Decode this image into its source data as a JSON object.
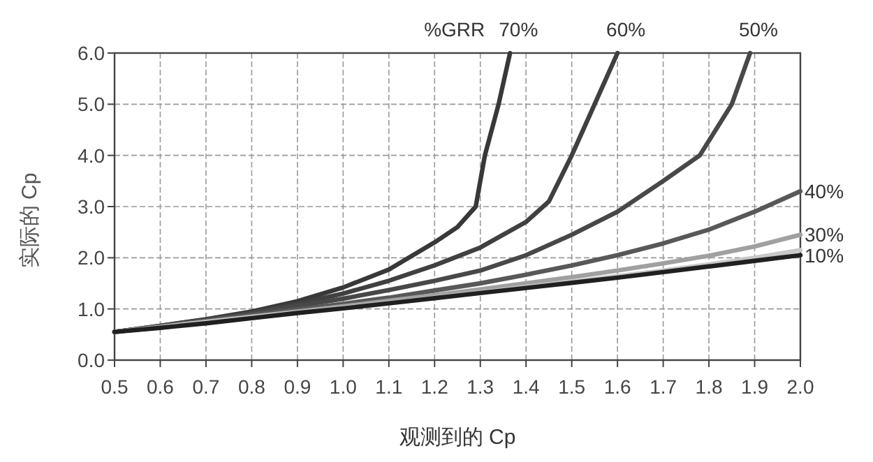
{
  "chart_data": {
    "type": "line",
    "xlabel": "观测到的 Cp",
    "ylabel": "实际的 Cp",
    "legend_title": "%GRR",
    "xlim": [
      0.5,
      2.0
    ],
    "xticks": [
      {
        "value": 0.5,
        "label": "0.5"
      },
      {
        "value": 0.6,
        "label": "0.6"
      },
      {
        "value": 0.7,
        "label": "0.7"
      },
      {
        "value": 0.8,
        "label": "0.8"
      },
      {
        "value": 0.9,
        "label": "0.9"
      },
      {
        "value": 1.0,
        "label": "1.0"
      },
      {
        "value": 1.1,
        "label": "1.1"
      },
      {
        "value": 1.2,
        "label": "1.2"
      },
      {
        "value": 1.3,
        "label": "1.3"
      },
      {
        "value": 1.4,
        "label": "1.4"
      },
      {
        "value": 1.5,
        "label": "1.5"
      },
      {
        "value": 1.6,
        "label": "1.6"
      },
      {
        "value": 1.7,
        "label": "1.7"
      },
      {
        "value": 1.8,
        "label": "1.8"
      },
      {
        "value": 1.9,
        "label": "1.9"
      },
      {
        "value": 2.0,
        "label": "2.0"
      }
    ],
    "ylim": [
      0,
      6
    ],
    "yticks": [
      {
        "value": 0,
        "label": "0.0"
      },
      {
        "value": 1,
        "label": "1.0"
      },
      {
        "value": 2,
        "label": "2.0"
      },
      {
        "value": 3,
        "label": "3.0"
      },
      {
        "value": 4,
        "label": "4.0"
      },
      {
        "value": 5,
        "label": "5.0"
      },
      {
        "value": 6,
        "label": "6.0"
      }
    ],
    "grid": true,
    "line_style": "solid",
    "series": [
      {
        "name": "70%",
        "color": "#383838",
        "x": [
          0.5,
          0.6,
          0.7,
          0.8,
          0.9,
          1.0,
          1.1,
          1.2,
          1.25,
          1.29,
          1.31,
          1.34,
          1.365
        ],
        "values": [
          0.55,
          0.67,
          0.8,
          0.95,
          1.15,
          1.42,
          1.77,
          2.3,
          2.6,
          3.0,
          4.0,
          5.0,
          6.0
        ]
      },
      {
        "name": "60%",
        "color": "#404040",
        "x": [
          0.5,
          0.6,
          0.7,
          0.8,
          0.9,
          1.0,
          1.1,
          1.2,
          1.3,
          1.4,
          1.45,
          1.5,
          1.55,
          1.6
        ],
        "values": [
          0.55,
          0.67,
          0.79,
          0.93,
          1.1,
          1.3,
          1.55,
          1.85,
          2.2,
          2.7,
          3.1,
          4.0,
          5.0,
          6.0
        ]
      },
      {
        "name": "50%",
        "color": "#484848",
        "x": [
          0.5,
          0.6,
          0.7,
          0.8,
          0.9,
          1.0,
          1.1,
          1.2,
          1.3,
          1.4,
          1.5,
          1.6,
          1.7,
          1.78,
          1.85,
          1.89
        ],
        "values": [
          0.55,
          0.66,
          0.78,
          0.91,
          1.06,
          1.2,
          1.37,
          1.55,
          1.75,
          2.05,
          2.45,
          2.9,
          3.5,
          4.0,
          5.0,
          6.0
        ]
      },
      {
        "name": "40%",
        "color": "#585858",
        "x": [
          0.5,
          0.6,
          0.7,
          0.8,
          0.9,
          1.0,
          1.1,
          1.2,
          1.3,
          1.4,
          1.5,
          1.6,
          1.7,
          1.8,
          1.9,
          2.0
        ],
        "values": [
          0.55,
          0.66,
          0.77,
          0.88,
          0.99,
          1.1,
          1.22,
          1.36,
          1.5,
          1.67,
          1.85,
          2.05,
          2.28,
          2.55,
          2.9,
          3.3
        ]
      },
      {
        "name": "30%",
        "color": "#a0a0a0",
        "x": [
          0.5,
          0.6,
          0.7,
          0.8,
          0.9,
          1.0,
          1.1,
          1.2,
          1.3,
          1.4,
          1.5,
          1.6,
          1.7,
          1.8,
          1.9,
          2.0
        ],
        "values": [
          0.55,
          0.65,
          0.75,
          0.85,
          0.95,
          1.05,
          1.16,
          1.27,
          1.38,
          1.5,
          1.62,
          1.75,
          1.89,
          2.04,
          2.22,
          2.45
        ]
      },
      {
        "color": "#c8c8c8",
        "x": [
          0.5,
          0.6,
          0.7,
          0.8,
          0.9,
          1.0,
          1.1,
          1.2,
          1.3,
          1.4,
          1.5,
          1.6,
          1.7,
          1.8,
          1.9,
          2.0
        ],
        "values": [
          0.55,
          0.64,
          0.74,
          0.84,
          0.93,
          1.02,
          1.12,
          1.22,
          1.32,
          1.43,
          1.53,
          1.64,
          1.75,
          1.87,
          2.0,
          2.15
        ]
      },
      {
        "name": "10%",
        "color": "#202020",
        "x": [
          0.5,
          0.6,
          0.7,
          0.8,
          0.9,
          1.0,
          1.1,
          1.2,
          1.3,
          1.4,
          1.5,
          1.6,
          1.7,
          1.8,
          1.9,
          2.0
        ],
        "values": [
          0.55,
          0.63,
          0.72,
          0.82,
          0.92,
          1.01,
          1.11,
          1.21,
          1.31,
          1.41,
          1.51,
          1.61,
          1.72,
          1.83,
          1.94,
          2.05
        ]
      }
    ]
  }
}
